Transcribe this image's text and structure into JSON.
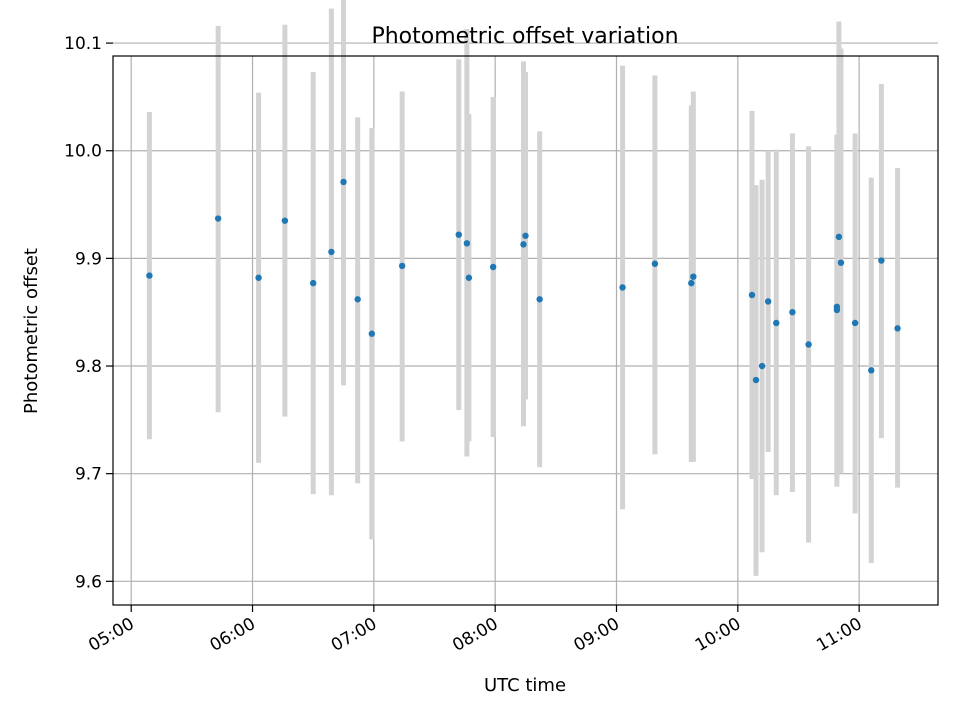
{
  "chart_data": {
    "type": "scatter",
    "title": "Photometric offset variation",
    "xlabel": "UTC time",
    "ylabel": "Photometric offset",
    "xlim": [
      "04:51",
      "11:39"
    ],
    "ylim": [
      9.578,
      10.088
    ],
    "grid": true,
    "x_ticks": [
      "05:00",
      "06:00",
      "07:00",
      "08:00",
      "09:00",
      "10:00",
      "11:00"
    ],
    "y_ticks": [
      "9.6",
      "9.7",
      "9.8",
      "9.9",
      "10.0",
      "10.1"
    ],
    "colors": {
      "point": "#1f77b4",
      "errorbar": "#d3d3d3",
      "grid": "#b0b0b0"
    },
    "series": [
      {
        "points": [
          {
            "x": "05:09",
            "y": 9.884,
            "ylow": 9.732,
            "yhigh": 10.036
          },
          {
            "x": "05:43",
            "y": 9.937,
            "ylow": 9.757,
            "yhigh": 10.116
          },
          {
            "x": "06:03",
            "y": 9.882,
            "ylow": 9.71,
            "yhigh": 10.054
          },
          {
            "x": "06:16",
            "y": 9.935,
            "ylow": 9.753,
            "yhigh": 10.117
          },
          {
            "x": "06:30",
            "y": 9.877,
            "ylow": 9.681,
            "yhigh": 10.073
          },
          {
            "x": "06:39",
            "y": 9.906,
            "ylow": 9.68,
            "yhigh": 10.132
          },
          {
            "x": "06:45",
            "y": 9.971,
            "ylow": 9.782,
            "yhigh": 10.16
          },
          {
            "x": "06:52",
            "y": 9.862,
            "ylow": 9.691,
            "yhigh": 10.031
          },
          {
            "x": "06:59",
            "y": 9.83,
            "ylow": 9.639,
            "yhigh": 10.021
          },
          {
            "x": "07:14",
            "y": 9.893,
            "ylow": 9.73,
            "yhigh": 10.055
          },
          {
            "x": "07:42",
            "y": 9.922,
            "ylow": 9.759,
            "yhigh": 10.085
          },
          {
            "x": "07:46",
            "y": 9.914,
            "ylow": 9.716,
            "yhigh": 10.113
          },
          {
            "x": "07:47",
            "y": 9.882,
            "ylow": 9.73,
            "yhigh": 10.034
          },
          {
            "x": "07:59",
            "y": 9.892,
            "ylow": 9.734,
            "yhigh": 10.05
          },
          {
            "x": "08:14",
            "y": 9.913,
            "ylow": 9.744,
            "yhigh": 10.083
          },
          {
            "x": "08:15",
            "y": 9.921,
            "ylow": 9.769,
            "yhigh": 10.073
          },
          {
            "x": "08:22",
            "y": 9.862,
            "ylow": 9.706,
            "yhigh": 10.018
          },
          {
            "x": "09:03",
            "y": 9.873,
            "ylow": 9.667,
            "yhigh": 10.079
          },
          {
            "x": "09:19",
            "y": 9.895,
            "ylow": 9.718,
            "yhigh": 10.07
          },
          {
            "x": "09:37",
            "y": 9.877,
            "ylow": 9.711,
            "yhigh": 10.042
          },
          {
            "x": "09:38",
            "y": 9.883,
            "ylow": 9.711,
            "yhigh": 10.055
          },
          {
            "x": "10:07",
            "y": 9.866,
            "ylow": 9.695,
            "yhigh": 10.037
          },
          {
            "x": "10:09",
            "y": 9.787,
            "ylow": 9.605,
            "yhigh": 9.968
          },
          {
            "x": "10:12",
            "y": 9.8,
            "ylow": 9.627,
            "yhigh": 9.973
          },
          {
            "x": "10:15",
            "y": 9.86,
            "ylow": 9.72,
            "yhigh": 10.0
          },
          {
            "x": "10:19",
            "y": 9.84,
            "ylow": 9.68,
            "yhigh": 10.001
          },
          {
            "x": "10:27",
            "y": 9.85,
            "ylow": 9.683,
            "yhigh": 10.016
          },
          {
            "x": "10:35",
            "y": 9.82,
            "ylow": 9.636,
            "yhigh": 10.004
          },
          {
            "x": "10:49",
            "y": 9.855,
            "ylow": 9.695,
            "yhigh": 10.015
          },
          {
            "x": "10:49",
            "y": 9.852,
            "ylow": 9.688,
            "yhigh": 10.015
          },
          {
            "x": "10:50",
            "y": 9.92,
            "ylow": 9.73,
            "yhigh": 10.12
          },
          {
            "x": "10:51",
            "y": 9.896,
            "ylow": 9.7,
            "yhigh": 10.095
          },
          {
            "x": "10:58",
            "y": 9.84,
            "ylow": 9.663,
            "yhigh": 10.016
          },
          {
            "x": "11:06",
            "y": 9.796,
            "ylow": 9.617,
            "yhigh": 9.975
          },
          {
            "x": "11:11",
            "y": 9.898,
            "ylow": 9.733,
            "yhigh": 10.062
          },
          {
            "x": "11:19",
            "y": 9.835,
            "ylow": 9.687,
            "yhigh": 9.984
          }
        ]
      }
    ]
  }
}
